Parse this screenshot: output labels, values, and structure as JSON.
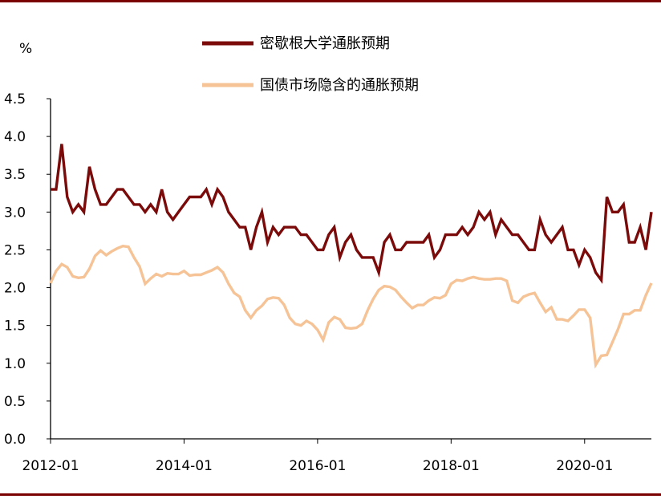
{
  "chart_data": {
    "type": "line",
    "unit_label": "%",
    "ylim": [
      0,
      4.5
    ],
    "yticks": [
      "0.0",
      "0.5",
      "1.0",
      "1.5",
      "2.0",
      "2.5",
      "3.0",
      "3.5",
      "4.0",
      "4.5"
    ],
    "xticks": [
      "2012-01",
      "2014-01",
      "2016-01",
      "2018-01",
      "2020-01"
    ],
    "x_start": "2012-01",
    "x_end": "2021-01",
    "legend_position": "top-center",
    "grid": false,
    "series": [
      {
        "name": "密歇根大学通胀预期",
        "color": "#7b0b0b",
        "values": [
          3.3,
          3.3,
          3.9,
          3.2,
          3.0,
          3.1,
          3.0,
          3.6,
          3.3,
          3.1,
          3.1,
          3.2,
          3.3,
          3.3,
          3.2,
          3.1,
          3.1,
          3.0,
          3.1,
          3.0,
          3.3,
          3.0,
          2.9,
          3.0,
          3.1,
          3.2,
          3.2,
          3.2,
          3.3,
          3.1,
          3.3,
          3.2,
          3.0,
          2.9,
          2.8,
          2.8,
          2.5,
          2.8,
          3.0,
          2.6,
          2.8,
          2.7,
          2.8,
          2.8,
          2.8,
          2.7,
          2.7,
          2.6,
          2.5,
          2.5,
          2.7,
          2.8,
          2.4,
          2.6,
          2.7,
          2.5,
          2.4,
          2.4,
          2.4,
          2.2,
          2.6,
          2.7,
          2.5,
          2.5,
          2.6,
          2.6,
          2.6,
          2.6,
          2.7,
          2.4,
          2.5,
          2.7,
          2.7,
          2.7,
          2.8,
          2.7,
          2.8,
          3.0,
          2.9,
          3.0,
          2.7,
          2.9,
          2.8,
          2.7,
          2.7,
          2.6,
          2.5,
          2.5,
          2.9,
          2.7,
          2.6,
          2.7,
          2.8,
          2.5,
          2.5,
          2.3,
          2.5,
          2.4,
          2.2,
          2.1,
          3.2,
          3.0,
          3.0,
          3.1,
          2.6,
          2.6,
          2.8,
          2.5,
          3.0
        ]
      },
      {
        "name": "国债市场隐含的通胀预期",
        "color": "#f5c396",
        "values": [
          2.06,
          2.22,
          2.31,
          2.27,
          2.15,
          2.13,
          2.14,
          2.25,
          2.42,
          2.49,
          2.43,
          2.48,
          2.52,
          2.55,
          2.54,
          2.4,
          2.28,
          2.05,
          2.12,
          2.18,
          2.15,
          2.19,
          2.18,
          2.18,
          2.22,
          2.16,
          2.17,
          2.17,
          2.2,
          2.23,
          2.27,
          2.2,
          2.05,
          1.93,
          1.88,
          1.7,
          1.6,
          1.7,
          1.76,
          1.85,
          1.87,
          1.86,
          1.77,
          1.6,
          1.52,
          1.5,
          1.56,
          1.52,
          1.44,
          1.31,
          1.54,
          1.61,
          1.58,
          1.47,
          1.46,
          1.47,
          1.52,
          1.7,
          1.85,
          1.97,
          2.02,
          2.01,
          1.97,
          1.88,
          1.8,
          1.73,
          1.77,
          1.77,
          1.83,
          1.87,
          1.86,
          1.9,
          2.05,
          2.1,
          2.09,
          2.12,
          2.14,
          2.12,
          2.11,
          2.11,
          2.12,
          2.12,
          2.09,
          1.83,
          1.8,
          1.88,
          1.91,
          1.93,
          1.8,
          1.68,
          1.74,
          1.58,
          1.58,
          1.56,
          1.63,
          1.71,
          1.71,
          1.6,
          0.98,
          1.1,
          1.11,
          1.28,
          1.45,
          1.65,
          1.65,
          1.7,
          1.7,
          1.9,
          2.06
        ]
      }
    ]
  }
}
